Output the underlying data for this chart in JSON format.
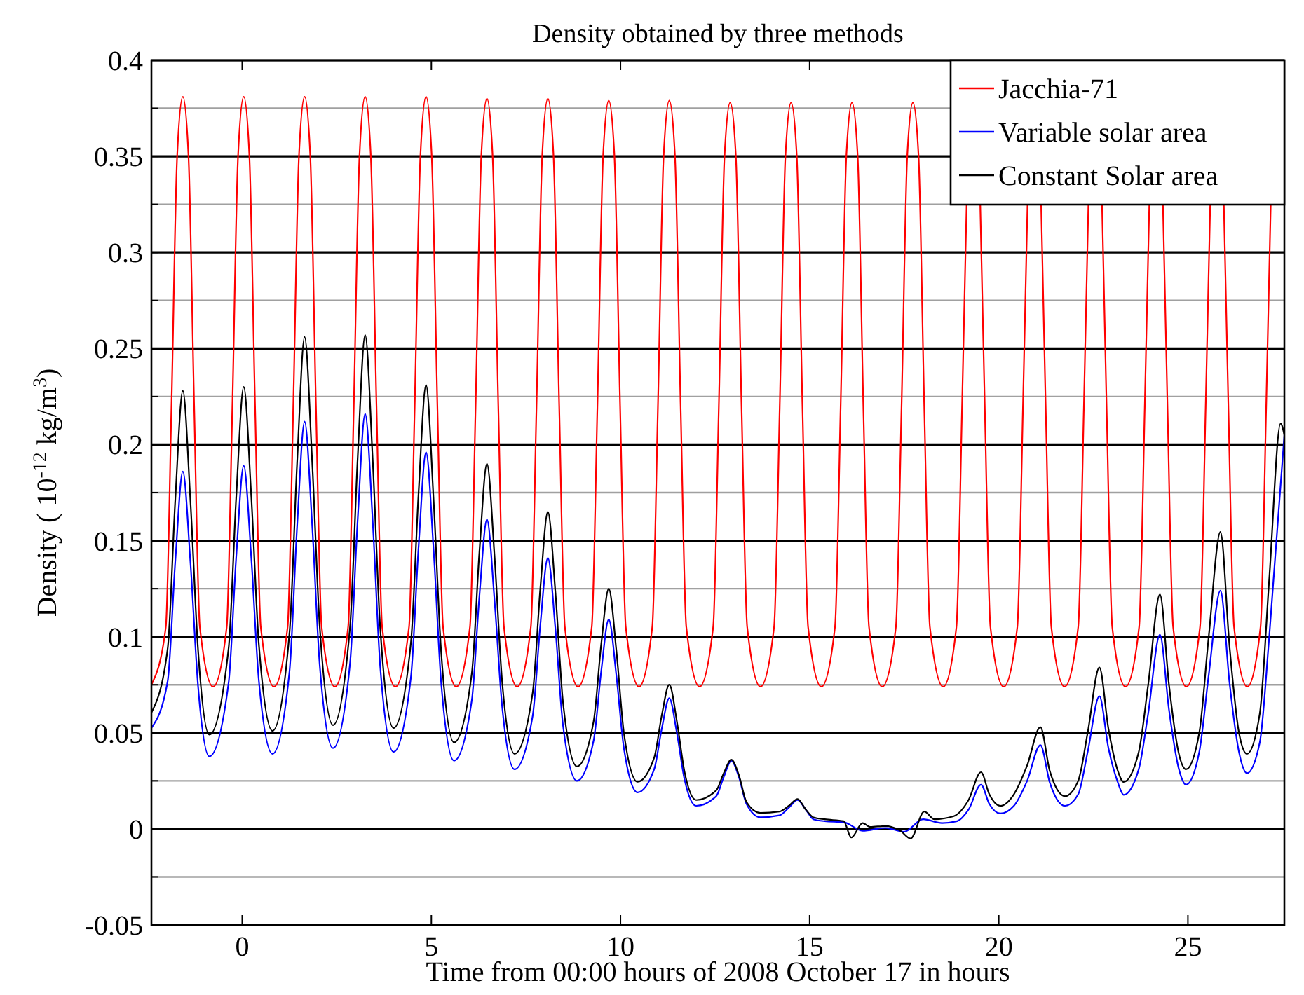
{
  "chart_data": {
    "type": "line",
    "title": "Density obtained by three methods",
    "xlabel": "Time from 00:00 hours of 2008 October 17 in hours",
    "ylabel": "Density ( 10$^{-12}$ kg/m$^{3}$)",
    "xlim": [
      -2.4,
      27.55
    ],
    "xticks": [
      0,
      5,
      10,
      15,
      20,
      25
    ],
    "ylim": [
      -0.05,
      0.4
    ],
    "yticks": [
      -0.05,
      {
        "value": -0.025,
        "label": null
      },
      0,
      {
        "value": 0.025,
        "label": null
      },
      0.05,
      {
        "value": 0.075,
        "label": null
      },
      0.1,
      {
        "value": 0.125,
        "label": null
      },
      0.15,
      {
        "value": 0.175,
        "label": null
      },
      0.2,
      {
        "value": 0.225,
        "label": null
      },
      0.25,
      {
        "value": 0.275,
        "label": null
      },
      0.3,
      {
        "value": 0.325,
        "label": null
      },
      0.35,
      {
        "value": 0.375,
        "label": null
      },
      0.4
    ],
    "grid": "y",
    "legend": "top right",
    "marker": "none",
    "line_style": "solid",
    "series": [
      {
        "name": "Jacchia-71",
        "color": "#ff0000",
        "x": [
          -2.4,
          -2.02,
          -1.87,
          -1.72,
          -1.57,
          -1.42,
          -1.27,
          -1.12,
          -0.77,
          -0.41,
          -0.26,
          -0.11,
          0.04,
          0.19,
          0.34,
          0.49,
          0.84,
          1.2,
          1.35,
          1.5,
          1.65,
          1.8,
          1.95,
          2.1,
          2.45,
          2.8,
          2.95,
          3.1,
          3.25,
          3.4,
          3.55,
          3.7,
          4.05,
          4.41,
          4.56,
          4.71,
          4.86,
          5.01,
          5.16,
          5.31,
          5.66,
          6.02,
          6.17,
          6.32,
          6.47,
          6.62,
          6.77,
          6.92,
          7.27,
          7.63,
          7.78,
          7.93,
          8.08,
          8.23,
          8.38,
          8.53,
          8.88,
          9.24,
          9.39,
          9.54,
          9.69,
          9.84,
          9.99,
          10.14,
          10.49,
          10.84,
          10.99,
          11.14,
          11.29,
          11.44,
          11.59,
          11.74,
          12.09,
          12.45,
          12.6,
          12.75,
          12.9,
          13.05,
          13.2,
          13.35,
          13.7,
          14.06,
          14.21,
          14.36,
          14.51,
          14.66,
          14.81,
          14.96,
          15.31,
          15.67,
          15.82,
          15.97,
          16.12,
          16.27,
          16.42,
          16.57,
          16.92,
          17.28,
          17.43,
          17.58,
          17.73,
          17.88,
          18.03,
          18.18,
          18.53,
          18.88,
          19.03,
          19.15,
          19.33,
          19.51,
          19.63,
          19.78,
          20.13,
          20.49,
          20.64,
          20.76,
          20.94,
          21.12,
          21.24,
          21.39,
          21.74,
          22.1,
          22.25,
          22.37,
          22.55,
          22.73,
          22.85,
          23.0,
          23.35,
          23.71,
          23.86,
          23.98,
          24.16,
          24.34,
          24.46,
          24.61,
          24.96,
          25.32,
          25.47,
          25.59,
          25.77,
          25.95,
          26.07,
          26.22,
          26.57,
          26.92,
          27.07,
          27.19
        ],
        "values": [
          0.075,
          0.105,
          0.22,
          0.35,
          0.381,
          0.35,
          0.22,
          0.105,
          0.074,
          0.105,
          0.22,
          0.35,
          0.381,
          0.35,
          0.22,
          0.105,
          0.074,
          0.105,
          0.22,
          0.35,
          0.381,
          0.35,
          0.22,
          0.105,
          0.074,
          0.105,
          0.22,
          0.35,
          0.381,
          0.35,
          0.22,
          0.105,
          0.074,
          0.105,
          0.22,
          0.35,
          0.381,
          0.35,
          0.22,
          0.105,
          0.074,
          0.105,
          0.22,
          0.35,
          0.38,
          0.35,
          0.22,
          0.105,
          0.074,
          0.105,
          0.22,
          0.35,
          0.38,
          0.35,
          0.22,
          0.105,
          0.074,
          0.105,
          0.22,
          0.35,
          0.379,
          0.35,
          0.22,
          0.105,
          0.074,
          0.105,
          0.22,
          0.35,
          0.379,
          0.35,
          0.22,
          0.105,
          0.074,
          0.105,
          0.22,
          0.35,
          0.378,
          0.35,
          0.22,
          0.105,
          0.074,
          0.105,
          0.22,
          0.35,
          0.378,
          0.35,
          0.22,
          0.105,
          0.074,
          0.105,
          0.22,
          0.35,
          0.378,
          0.35,
          0.22,
          0.105,
          0.074,
          0.105,
          0.22,
          0.35,
          0.378,
          0.35,
          0.22,
          0.105,
          0.074,
          0.105,
          0.22,
          0.325,
          null,
          0.325,
          0.22,
          0.105,
          0.074,
          0.105,
          0.22,
          0.325,
          null,
          0.325,
          0.22,
          0.105,
          0.074,
          0.105,
          0.22,
          0.325,
          null,
          0.325,
          0.22,
          0.105,
          0.074,
          0.105,
          0.22,
          0.325,
          null,
          0.325,
          0.22,
          0.105,
          0.074,
          0.105,
          0.22,
          0.325,
          null,
          0.325,
          0.22,
          0.105,
          0.074,
          0.105,
          0.22,
          0.325
        ]
      },
      {
        "name": "Variable solar area",
        "color": "#0000ff",
        "x": [
          -2.4,
          -1.97,
          -1.77,
          -1.57,
          -1.37,
          -1.17,
          -0.87,
          -0.36,
          -0.16,
          0.04,
          0.24,
          0.44,
          0.8,
          1.25,
          1.45,
          1.65,
          1.85,
          2.05,
          2.4,
          2.85,
          3.05,
          3.25,
          3.45,
          3.65,
          4.0,
          4.46,
          4.66,
          4.86,
          5.06,
          5.26,
          5.6,
          6.07,
          6.27,
          6.47,
          6.67,
          6.87,
          7.2,
          7.68,
          7.88,
          8.08,
          8.28,
          8.48,
          8.85,
          9.29,
          9.49,
          9.69,
          9.89,
          10.09,
          10.45,
          10.89,
          11.09,
          11.29,
          11.49,
          11.69,
          12.0,
          12.53,
          12.73,
          12.93,
          13.13,
          13.33,
          13.7,
          14.2,
          14.45,
          14.68,
          14.9,
          15.1,
          15.4,
          15.9,
          16.4,
          17.0,
          17.5,
          18.0,
          18.5,
          18.9,
          19.2,
          19.53,
          19.75,
          20.04,
          20.4,
          20.75,
          21.1,
          21.35,
          21.75,
          22.1,
          22.35,
          22.66,
          22.9,
          23.15,
          23.3,
          23.7,
          23.95,
          24.26,
          24.5,
          24.75,
          24.95,
          25.3,
          25.55,
          25.86,
          26.1,
          26.35,
          26.56,
          26.9,
          27.15,
          27.55
        ],
        "values": [
          0.0525,
          0.077,
          0.139,
          0.186,
          0.139,
          0.075,
          0.0377,
          0.076,
          0.141,
          0.189,
          0.141,
          0.077,
          0.039,
          0.082,
          0.157,
          0.212,
          0.158,
          0.085,
          0.042,
          0.086,
          0.16,
          0.216,
          0.16,
          0.084,
          0.04,
          0.079,
          0.146,
          0.196,
          0.145,
          0.076,
          0.0355,
          0.067,
          0.121,
          0.161,
          0.119,
          0.064,
          0.031,
          0.059,
          0.106,
          0.141,
          0.104,
          0.054,
          0.025,
          0.046,
          0.082,
          0.109,
          0.08,
          0.042,
          0.019,
          0.031,
          0.052,
          0.068,
          0.05,
          0.026,
          0.012,
          0.017,
          0.027,
          0.0355,
          0.027,
          0.013,
          0.006,
          0.007,
          0.011,
          0.015,
          0.01,
          0.005,
          0.004,
          0.0035,
          -0.001,
          0.0005,
          -0.0015,
          0.005,
          0.003,
          0.004,
          0.01,
          0.023,
          0.013,
          0.008,
          0.012,
          0.025,
          0.0436,
          0.024,
          0.012,
          0.018,
          0.04,
          0.069,
          0.042,
          0.024,
          0.0177,
          0.031,
          0.06,
          0.101,
          0.062,
          0.032,
          0.023,
          0.04,
          0.08,
          0.124,
          0.076,
          0.04,
          0.029,
          0.045,
          0.1,
          0.205
        ]
      },
      {
        "name": "Constant Solar area",
        "color": "#000000",
        "x": [
          -2.4,
          -1.97,
          -1.77,
          -1.57,
          -1.37,
          -1.17,
          -0.87,
          -0.36,
          -0.16,
          0.04,
          0.24,
          0.44,
          0.8,
          1.25,
          1.45,
          1.65,
          1.85,
          2.05,
          2.4,
          2.85,
          3.05,
          3.25,
          3.45,
          3.65,
          4.0,
          4.46,
          4.66,
          4.86,
          5.06,
          5.26,
          5.6,
          6.07,
          6.27,
          6.47,
          6.67,
          6.87,
          7.2,
          7.68,
          7.88,
          8.08,
          8.28,
          8.48,
          8.85,
          9.29,
          9.49,
          9.69,
          9.89,
          10.09,
          10.45,
          10.89,
          11.09,
          11.29,
          11.49,
          11.69,
          12.0,
          12.53,
          12.73,
          12.93,
          13.13,
          13.33,
          13.7,
          14.2,
          14.45,
          14.68,
          14.9,
          15.1,
          15.4,
          15.9,
          16.1,
          16.4,
          16.6,
          17.0,
          17.4,
          17.67,
          18.03,
          18.3,
          18.8,
          19.2,
          19.53,
          19.75,
          20.04,
          20.4,
          20.75,
          21.1,
          21.35,
          21.75,
          22.1,
          22.35,
          22.66,
          22.9,
          23.15,
          23.3,
          23.7,
          23.95,
          24.26,
          24.5,
          24.75,
          24.95,
          25.3,
          25.55,
          25.86,
          26.1,
          26.35,
          26.56,
          26.9,
          27.15,
          27.45,
          27.55
        ],
        "values": [
          0.0605,
          0.094,
          0.171,
          0.228,
          0.171,
          0.094,
          0.049,
          0.094,
          0.172,
          0.23,
          0.173,
          0.096,
          0.051,
          0.102,
          0.19,
          0.256,
          0.191,
          0.105,
          0.054,
          0.105,
          0.192,
          0.257,
          0.192,
          0.104,
          0.0525,
          0.097,
          0.174,
          0.231,
          0.171,
          0.092,
          0.045,
          0.081,
          0.144,
          0.19,
          0.142,
          0.077,
          0.039,
          0.071,
          0.125,
          0.165,
          0.123,
          0.066,
          0.0325,
          0.056,
          0.096,
          0.125,
          0.093,
          0.05,
          0.0245,
          0.037,
          0.059,
          0.075,
          0.056,
          0.03,
          0.015,
          0.02,
          0.029,
          0.036,
          0.028,
          0.014,
          0.0083,
          0.009,
          0.012,
          0.0155,
          0.01,
          0.006,
          0.005,
          0.004,
          -0.0045,
          0.003,
          0.001,
          0.0015,
          -0.001,
          -0.005,
          0.009,
          0.005,
          0.0065,
          0.015,
          0.0295,
          0.018,
          0.012,
          0.018,
          0.033,
          0.053,
          0.03,
          0.017,
          0.025,
          0.05,
          0.084,
          0.052,
          0.03,
          0.0244,
          0.04,
          0.075,
          0.122,
          0.075,
          0.04,
          0.031,
          0.05,
          0.1,
          0.1545,
          0.095,
          0.05,
          0.039,
          0.06,
          0.13,
          0.211,
          0.205
        ]
      }
    ]
  }
}
